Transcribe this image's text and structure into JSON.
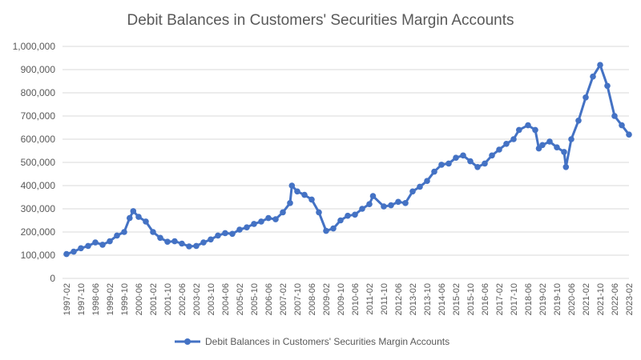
{
  "chart_data": {
    "type": "line",
    "title": "Debit Balances in Customers' Securities Margin Accounts",
    "xlabel": "",
    "ylabel": "",
    "ylim": [
      0,
      1000000
    ],
    "y_ticks": [
      "0",
      "100,000",
      "200,000",
      "300,000",
      "400,000",
      "500,000",
      "600,000",
      "700,000",
      "800,000",
      "900,000",
      "1,000,000"
    ],
    "x_ticks": [
      "1997-02",
      "1997-10",
      "1998-06",
      "1999-02",
      "1999-10",
      "2000-06",
      "2001-02",
      "2001-10",
      "2002-06",
      "2003-02",
      "2003-10",
      "2004-06",
      "2005-02",
      "2005-10",
      "2006-06",
      "2007-02",
      "2007-10",
      "2008-06",
      "2009-02",
      "2009-10",
      "2010-06",
      "2011-02",
      "2011-10",
      "2012-06",
      "2013-02",
      "2013-10",
      "2014-06",
      "2015-02",
      "2015-10",
      "2016-06",
      "2017-02",
      "2017-10",
      "2018-06",
      "2019-02",
      "2019-10",
      "2020-06",
      "2021-02",
      "2021-10",
      "2022-06",
      "2023-02"
    ],
    "grid": true,
    "legend_position": "bottom",
    "series": [
      {
        "name": "Debit Balances in Customers' Securities Margin Accounts",
        "color": "#4472c4",
        "x": [
          "1997-02",
          "1997-06",
          "1997-10",
          "1998-02",
          "1998-06",
          "1998-10",
          "1999-02",
          "1999-06",
          "1999-10",
          "2000-01",
          "2000-03",
          "2000-06",
          "2000-10",
          "2001-02",
          "2001-06",
          "2001-10",
          "2002-02",
          "2002-06",
          "2002-10",
          "2003-02",
          "2003-06",
          "2003-10",
          "2004-02",
          "2004-06",
          "2004-10",
          "2005-02",
          "2005-06",
          "2005-10",
          "2006-02",
          "2006-06",
          "2006-10",
          "2007-02",
          "2007-06",
          "2007-07",
          "2007-10",
          "2008-02",
          "2008-06",
          "2008-10",
          "2009-02",
          "2009-06",
          "2009-10",
          "2010-02",
          "2010-06",
          "2010-10",
          "2011-02",
          "2011-04",
          "2011-10",
          "2012-02",
          "2012-06",
          "2012-10",
          "2013-02",
          "2013-06",
          "2013-10",
          "2014-02",
          "2014-06",
          "2014-10",
          "2015-02",
          "2015-06",
          "2015-10",
          "2016-02",
          "2016-06",
          "2016-10",
          "2017-02",
          "2017-06",
          "2017-10",
          "2018-01",
          "2018-06",
          "2018-10",
          "2018-12",
          "2019-02",
          "2019-06",
          "2019-10",
          "2020-02",
          "2020-03",
          "2020-06",
          "2020-10",
          "2021-02",
          "2021-06",
          "2021-10",
          "2022-02",
          "2022-06",
          "2022-10",
          "2023-02"
        ],
        "values": [
          105000,
          115000,
          130000,
          140000,
          155000,
          145000,
          160000,
          185000,
          200000,
          260000,
          290000,
          265000,
          245000,
          200000,
          175000,
          158000,
          160000,
          150000,
          138000,
          140000,
          155000,
          168000,
          185000,
          195000,
          192000,
          210000,
          220000,
          235000,
          245000,
          260000,
          255000,
          285000,
          325000,
          400000,
          375000,
          360000,
          340000,
          285000,
          205000,
          215000,
          250000,
          270000,
          275000,
          300000,
          320000,
          355000,
          310000,
          315000,
          330000,
          325000,
          375000,
          395000,
          420000,
          460000,
          490000,
          495000,
          520000,
          530000,
          505000,
          480000,
          495000,
          530000,
          555000,
          580000,
          600000,
          640000,
          660000,
          640000,
          560000,
          575000,
          590000,
          565000,
          545000,
          480000,
          600000,
          680000,
          780000,
          870000,
          920000,
          830000,
          700000,
          660000,
          620000
        ]
      }
    ]
  }
}
